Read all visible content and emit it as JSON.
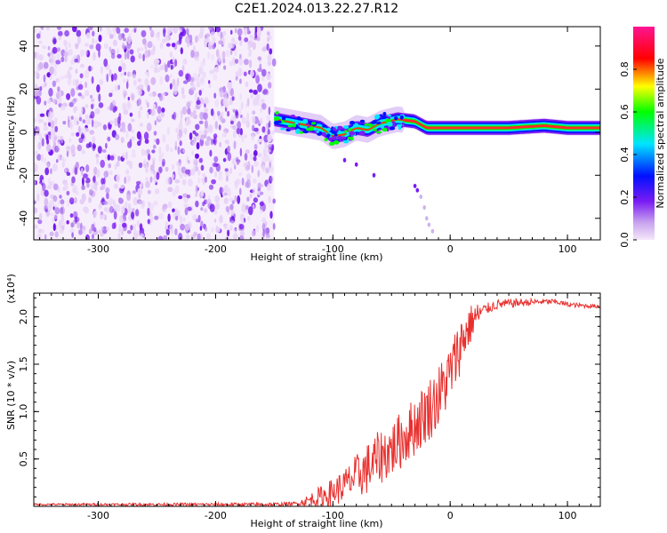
{
  "chart_data": [
    {
      "type": "heatmap",
      "title": "C2E1.2024.013.22.27.R12",
      "xlabel": "Height of straight line (km)",
      "ylabel": "Frequency (Hz)",
      "xlim": [
        -355,
        128
      ],
      "ylim": [
        -50,
        49
      ],
      "xticks": [
        -300,
        -200,
        -100,
        0,
        100
      ],
      "yticks": [
        -40,
        -20,
        0,
        20,
        40
      ],
      "colorbar": {
        "label": "Normalized spectral amplitude",
        "range": [
          0.0,
          1.0
        ],
        "ticks": [
          0.0,
          0.2,
          0.4,
          0.6,
          0.8
        ],
        "colors": [
          "#f4e8fa",
          "#c9a4ef",
          "#7a1cf2",
          "#0010ff",
          "#00e5ff",
          "#00ff00",
          "#ffff00",
          "#ff0000",
          "#ff1493"
        ]
      },
      "regions": [
        {
          "x_range": [
            -355,
            -150
          ],
          "freq_range": [
            -50,
            49
          ],
          "amplitude": 0.1
        },
        {
          "x_range": [
            -150,
            128
          ],
          "center_freq_track": [
            [
              -150,
              6
            ],
            [
              -130,
              4
            ],
            [
              -110,
              2
            ],
            [
              -100,
              -2
            ],
            [
              -90,
              -1
            ],
            [
              -80,
              2
            ],
            [
              -70,
              1
            ],
            [
              -60,
              4
            ],
            [
              -45,
              6
            ],
            [
              -30,
              5
            ],
            [
              -20,
              2
            ],
            [
              0,
              2
            ],
            [
              50,
              2
            ],
            [
              80,
              3
            ],
            [
              100,
              2
            ],
            [
              128,
              2
            ]
          ],
          "amplitude": 0.85
        }
      ]
    },
    {
      "type": "line",
      "title": "",
      "xlabel": "Height of straight line (km)",
      "ylabel": "SNR (10 * v/v)",
      "yscale_note": "(x10⁴)",
      "xlim": [
        -355,
        128
      ],
      "ylim": [
        0,
        2.25
      ],
      "xticks": [
        -300,
        -200,
        -100,
        0,
        100
      ],
      "yticks": [
        0.5,
        1.0,
        1.5,
        2.0
      ],
      "ytick_labels": [
        "0.5",
        "1.0",
        "1.5",
        "2.0"
      ],
      "series": [
        {
          "color": "#e8302e",
          "x": [
            -355,
            -300,
            -250,
            -200,
            -150,
            -130,
            -110,
            -100,
            -90,
            -80,
            -70,
            -60,
            -50,
            -40,
            -30,
            -20,
            -10,
            0,
            10,
            20,
            30,
            40,
            60,
            80,
            90,
            100,
            110,
            128
          ],
          "y": [
            0.02,
            0.02,
            0.02,
            0.02,
            0.02,
            0.03,
            0.1,
            0.15,
            0.22,
            0.32,
            0.4,
            0.52,
            0.6,
            0.72,
            0.85,
            1.0,
            1.15,
            1.4,
            1.75,
            1.98,
            2.08,
            2.13,
            2.15,
            2.16,
            2.16,
            2.13,
            2.12,
            2.11
          ],
          "noise_band": [
            [
              -355,
              0.01
            ],
            [
              -130,
              0.02
            ],
            [
              -110,
              0.12
            ],
            [
              -90,
              0.18
            ],
            [
              -70,
              0.28
            ],
            [
              -50,
              0.3
            ],
            [
              -30,
              0.32
            ],
            [
              -10,
              0.35
            ],
            [
              10,
              0.3
            ],
            [
              30,
              0.06
            ],
            [
              80,
              0.03
            ],
            [
              128,
              0.02
            ]
          ]
        }
      ]
    }
  ]
}
